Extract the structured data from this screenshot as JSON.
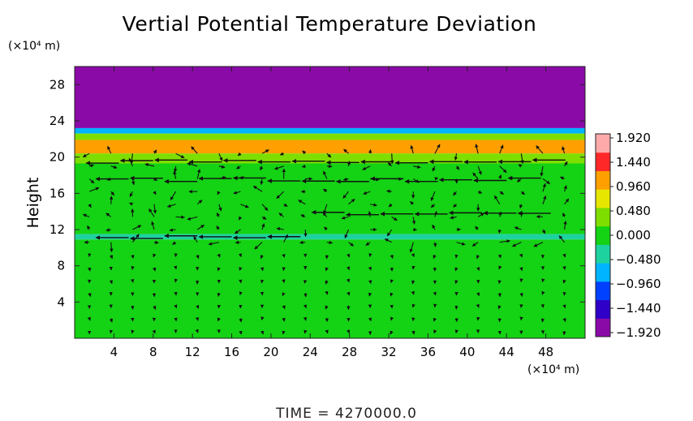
{
  "chart_data": {
    "type": "heatmap",
    "title": "Vertial Potential Temperature Deviation",
    "xlabel": "",
    "x_unit": "(×10⁴ m)",
    "ylabel": "Height",
    "y_unit": "(×10⁴ m)",
    "xlim": [
      0,
      52
    ],
    "ylim": [
      0,
      30
    ],
    "x_ticks": [
      4,
      8,
      12,
      16,
      20,
      24,
      28,
      32,
      36,
      40,
      44,
      48
    ],
    "y_ticks": [
      4,
      8,
      12,
      16,
      20,
      24,
      28
    ],
    "colorbar": {
      "min": -1.92,
      "max": 1.92,
      "labels": [
        "1.920",
        "1.440",
        "0.960",
        "0.480",
        "0.000",
        "−0.480",
        "−0.960",
        "−1.440",
        "−1.920"
      ],
      "colors": [
        "#8a0aa8",
        "#2e00c8",
        "#0040ff",
        "#00b4ff",
        "#1ed2a0",
        "#14d214",
        "#7ede00",
        "#e6e600",
        "#ffa000",
        "#ff2828",
        "#ffaaaa"
      ]
    },
    "layers": [
      {
        "y_range": [
          23.2,
          30
        ],
        "value": -1.92
      },
      {
        "y_range": [
          22.6,
          23.2
        ],
        "value": -0.9
      },
      {
        "y_range": [
          21.9,
          22.6
        ],
        "value": 0.45
      },
      {
        "y_range": [
          20.4,
          21.9
        ],
        "value": 1.2
      },
      {
        "y_range": [
          19.3,
          20.4
        ],
        "value": 0.25
      },
      {
        "y_range": [
          11.5,
          19.3
        ],
        "value": 0.12
      },
      {
        "y_range": [
          10.9,
          11.5
        ],
        "value": -0.25
      },
      {
        "y_range": [
          0,
          10.9
        ],
        "value": 0.05
      }
    ],
    "vector_field": {
      "description": "wind vectors; strong westward flow near heights 11, 13-14, 17-18 and 19.5",
      "jets": [
        {
          "height": 19.5,
          "x_range": [
            1,
            50
          ],
          "direction": "west"
        },
        {
          "height": 17.5,
          "x_range": [
            2,
            50
          ],
          "direction": "west"
        },
        {
          "height": 13.8,
          "x_range": [
            24,
            50
          ],
          "direction": "west"
        },
        {
          "height": 11.2,
          "x_range": [
            2,
            26
          ],
          "direction": "west"
        }
      ]
    }
  },
  "footer": {
    "time_label": "TIME  =  4270000.0"
  }
}
